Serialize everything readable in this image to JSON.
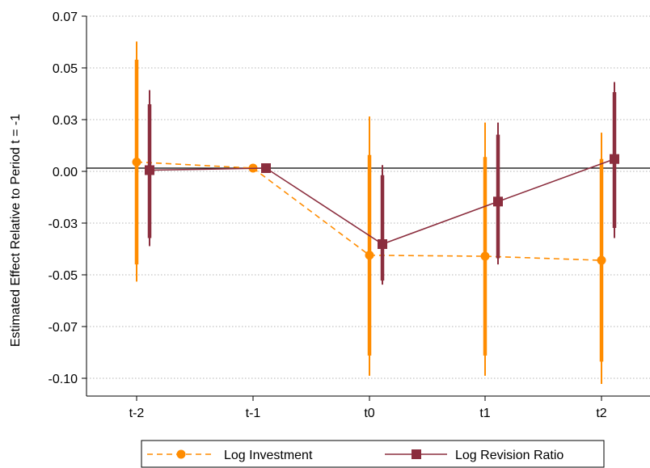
{
  "chart_data": {
    "type": "line",
    "title": "",
    "xlabel": "",
    "ylabel": "Estimated Effect Relative to Period t = -1",
    "categories": [
      "t-2",
      "t-1",
      "t0",
      "t1",
      "t2"
    ],
    "yticks": [
      "0.07",
      "0.05",
      "0.03",
      "0.00",
      "-0.03",
      "-0.05",
      "-0.07",
      "-0.10"
    ],
    "ylim": [
      -0.1125,
      0.075
    ],
    "grid": true,
    "legend_position": "bottom",
    "series": [
      {
        "name": "Log Investment",
        "color": "#ff8c00",
        "line_style": "dashed",
        "marker": "circle",
        "values": [
          0.003,
          0.0,
          -0.043,
          -0.0435,
          -0.0455
        ],
        "ci90": [
          [
            -0.0475,
            0.0535
          ],
          [
            0.0,
            0.0
          ],
          [
            -0.0925,
            0.0065
          ],
          [
            -0.0925,
            0.0055
          ],
          [
            -0.0955,
            0.0045
          ]
        ],
        "ci95": [
          [
            -0.056,
            0.0625
          ],
          [
            0.0,
            0.0
          ],
          [
            -0.1025,
            0.0255
          ],
          [
            -0.1025,
            0.0225
          ],
          [
            -0.1065,
            0.0175
          ]
        ]
      },
      {
        "name": "Log Revision Ratio",
        "color": "#8b2e3e",
        "line_style": "solid",
        "marker": "square",
        "values": [
          -0.001,
          0.0,
          -0.0375,
          -0.0165,
          0.0045
        ],
        "ci90": [
          [
            -0.0345,
            0.0315
          ],
          [
            0.0,
            0.0
          ],
          [
            -0.0555,
            -0.0035
          ],
          [
            -0.0445,
            0.0165
          ],
          [
            -0.0295,
            0.0375
          ]
        ],
        "ci95": [
          [
            -0.0385,
            0.0385
          ],
          [
            0.0,
            0.0
          ],
          [
            -0.0575,
            0.0015
          ],
          [
            -0.0475,
            0.0225
          ],
          [
            -0.0345,
            0.0425
          ]
        ]
      }
    ]
  }
}
